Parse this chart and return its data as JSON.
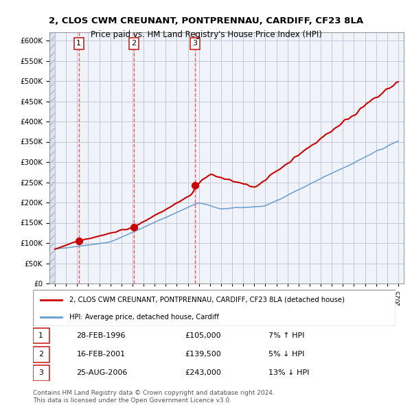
{
  "title1": "2, CLOS CWM CREUNANT, PONTPRENNAU, CARDIFF, CF23 8LA",
  "title2": "Price paid vs. HM Land Registry's House Price Index (HPI)",
  "legend_line1": "2, CLOS CWM CREUNANT, PONTPRENNAU, CARDIFF, CF23 8LA (detached house)",
  "legend_line2": "HPI: Average price, detached house, Cardiff",
  "footer1": "Contains HM Land Registry data © Crown copyright and database right 2024.",
  "footer2": "This data is licensed under the Open Government Licence v3.0.",
  "ylim": [
    0,
    620000
  ],
  "yticks": [
    0,
    50000,
    100000,
    150000,
    200000,
    250000,
    300000,
    350000,
    400000,
    450000,
    500000,
    550000,
    600000
  ],
  "ytick_labels": [
    "£0",
    "£50K",
    "£100K",
    "£150K",
    "£200K",
    "£250K",
    "£300K",
    "£350K",
    "£400K",
    "£450K",
    "£500K",
    "£550K",
    "£600K"
  ],
  "sale_dates": [
    1996.15,
    2001.12,
    2006.65
  ],
  "sale_prices": [
    105000,
    139500,
    243000
  ],
  "sale_labels": [
    "1",
    "2",
    "3"
  ],
  "sale_date_labels": [
    "28-FEB-1996",
    "16-FEB-2001",
    "25-AUG-2006"
  ],
  "sale_price_labels": [
    "£105,000",
    "£139,500",
    "£243,000"
  ],
  "sale_hpi_labels": [
    "7% ↑ HPI",
    "5% ↓ HPI",
    "13% ↓ HPI"
  ],
  "red_color": "#cc0000",
  "blue_color": "#6699cc",
  "dashed_color": "#ff4444",
  "bg_hatch_color": "#d0d8e8",
  "plot_bg": "#f0f4ff",
  "grid_color": "#c0c8d8"
}
